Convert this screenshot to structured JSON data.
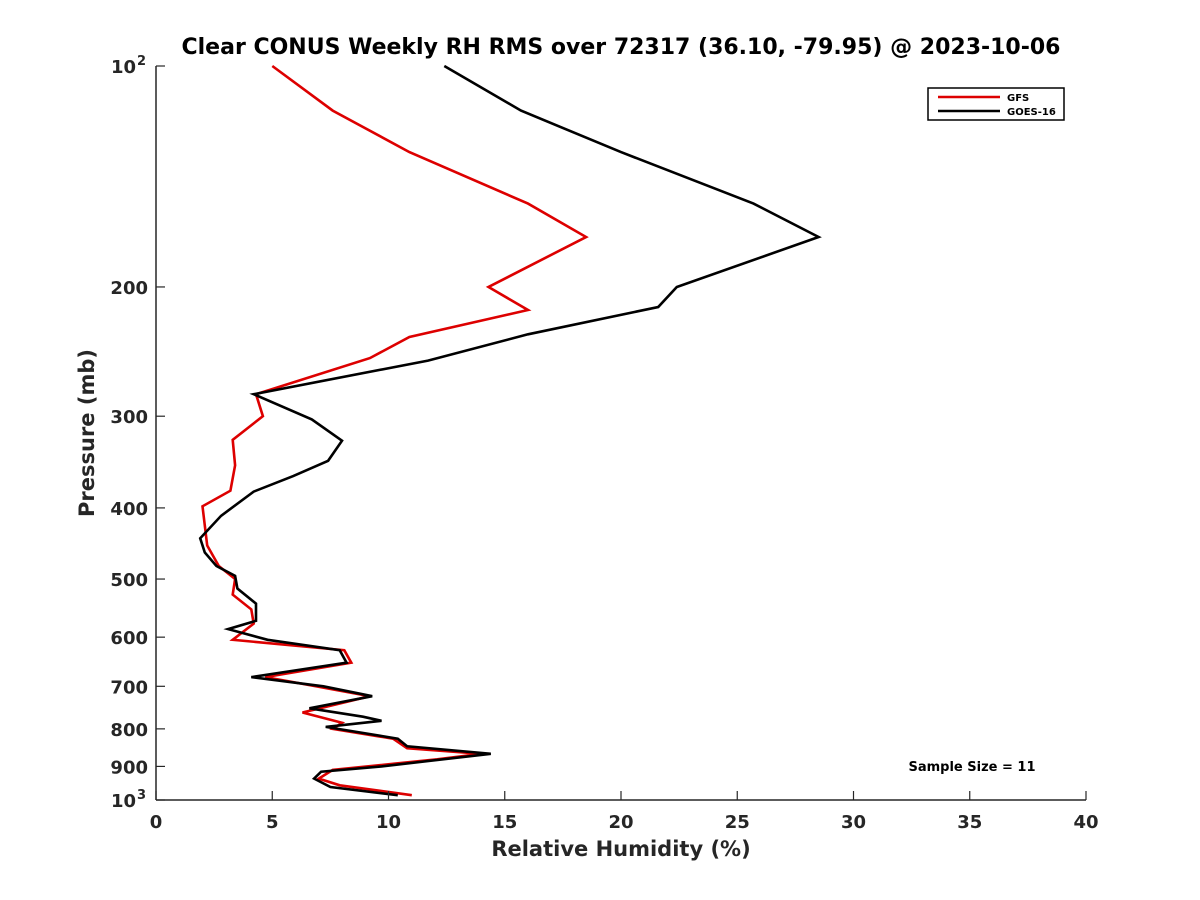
{
  "chart_data": {
    "type": "line",
    "title": "Clear CONUS Weekly RH RMS over 72317 (36.10, -79.95) @ 2023-10-06",
    "xlabel": "Relative Humidity (%)",
    "ylabel": "Pressure (mb)",
    "xlim": [
      0,
      40
    ],
    "ylim": [
      100,
      1000
    ],
    "y_scale": "log",
    "y_reversed": true,
    "grid": false,
    "legend_position": "top-right",
    "x_ticks": [
      0,
      5,
      10,
      15,
      20,
      25,
      30,
      35,
      40
    ],
    "y_ticks": [
      {
        "value": 100,
        "label": "10",
        "sup": "2"
      },
      {
        "value": 200,
        "label": "200",
        "sup": ""
      },
      {
        "value": 300,
        "label": "300",
        "sup": ""
      },
      {
        "value": 400,
        "label": "400",
        "sup": ""
      },
      {
        "value": 500,
        "label": "500",
        "sup": ""
      },
      {
        "value": 600,
        "label": "600",
        "sup": ""
      },
      {
        "value": 700,
        "label": "700",
        "sup": ""
      },
      {
        "value": 800,
        "label": "800",
        "sup": ""
      },
      {
        "value": 900,
        "label": "900",
        "sup": ""
      },
      {
        "value": 1000,
        "label": "10",
        "sup": "3"
      }
    ],
    "annotation": "Sample Size = 11",
    "series": [
      {
        "name": "GFS",
        "color": "#dd0000",
        "points": [
          [
            5.0,
            100
          ],
          [
            7.6,
            115
          ],
          [
            10.9,
            131
          ],
          [
            16.0,
            154
          ],
          [
            18.5,
            171
          ],
          [
            14.3,
            200
          ],
          [
            16.0,
            215
          ],
          [
            10.9,
            234
          ],
          [
            9.2,
            250
          ],
          [
            4.3,
            280
          ],
          [
            4.6,
            300
          ],
          [
            3.3,
            323
          ],
          [
            3.4,
            350
          ],
          [
            3.2,
            379
          ],
          [
            2.0,
            398
          ],
          [
            2.2,
            450
          ],
          [
            2.7,
            480
          ],
          [
            3.4,
            500
          ],
          [
            3.3,
            525
          ],
          [
            4.1,
            550
          ],
          [
            4.2,
            575
          ],
          [
            3.3,
            605
          ],
          [
            8.1,
            625
          ],
          [
            8.4,
            650
          ],
          [
            4.7,
            680
          ],
          [
            6.9,
            700
          ],
          [
            9.2,
            722
          ],
          [
            6.3,
            760
          ],
          [
            8.0,
            785
          ],
          [
            7.6,
            800
          ],
          [
            10.2,
            825
          ],
          [
            10.8,
            850
          ],
          [
            14.0,
            865
          ],
          [
            12.1,
            880
          ],
          [
            7.6,
            910
          ],
          [
            7.0,
            935
          ],
          [
            7.9,
            955
          ],
          [
            11.0,
            985
          ]
        ]
      },
      {
        "name": "GOES-16",
        "color": "#000000",
        "points": [
          [
            12.4,
            100
          ],
          [
            15.7,
            115
          ],
          [
            20.0,
            131
          ],
          [
            25.7,
            154
          ],
          [
            28.5,
            171
          ],
          [
            22.4,
            200
          ],
          [
            21.6,
            213
          ],
          [
            16.0,
            232
          ],
          [
            11.7,
            252
          ],
          [
            4.2,
            280
          ],
          [
            6.7,
            303
          ],
          [
            8.0,
            324
          ],
          [
            7.4,
            345
          ],
          [
            5.9,
            362
          ],
          [
            4.2,
            380
          ],
          [
            2.8,
            410
          ],
          [
            1.9,
            440
          ],
          [
            2.1,
            460
          ],
          [
            2.6,
            480
          ],
          [
            3.4,
            495
          ],
          [
            3.5,
            515
          ],
          [
            4.3,
            540
          ],
          [
            4.3,
            570
          ],
          [
            3.1,
            585
          ],
          [
            4.8,
            605
          ],
          [
            7.9,
            625
          ],
          [
            8.2,
            650
          ],
          [
            4.1,
            680
          ],
          [
            7.2,
            700
          ],
          [
            9.3,
            722
          ],
          [
            6.6,
            750
          ],
          [
            8.9,
            770
          ],
          [
            9.7,
            780
          ],
          [
            7.3,
            795
          ],
          [
            10.4,
            825
          ],
          [
            10.8,
            845
          ],
          [
            14.4,
            865
          ],
          [
            9.7,
            900
          ],
          [
            7.1,
            915
          ],
          [
            6.8,
            935
          ],
          [
            7.5,
            960
          ],
          [
            10.4,
            985
          ]
        ]
      }
    ]
  }
}
